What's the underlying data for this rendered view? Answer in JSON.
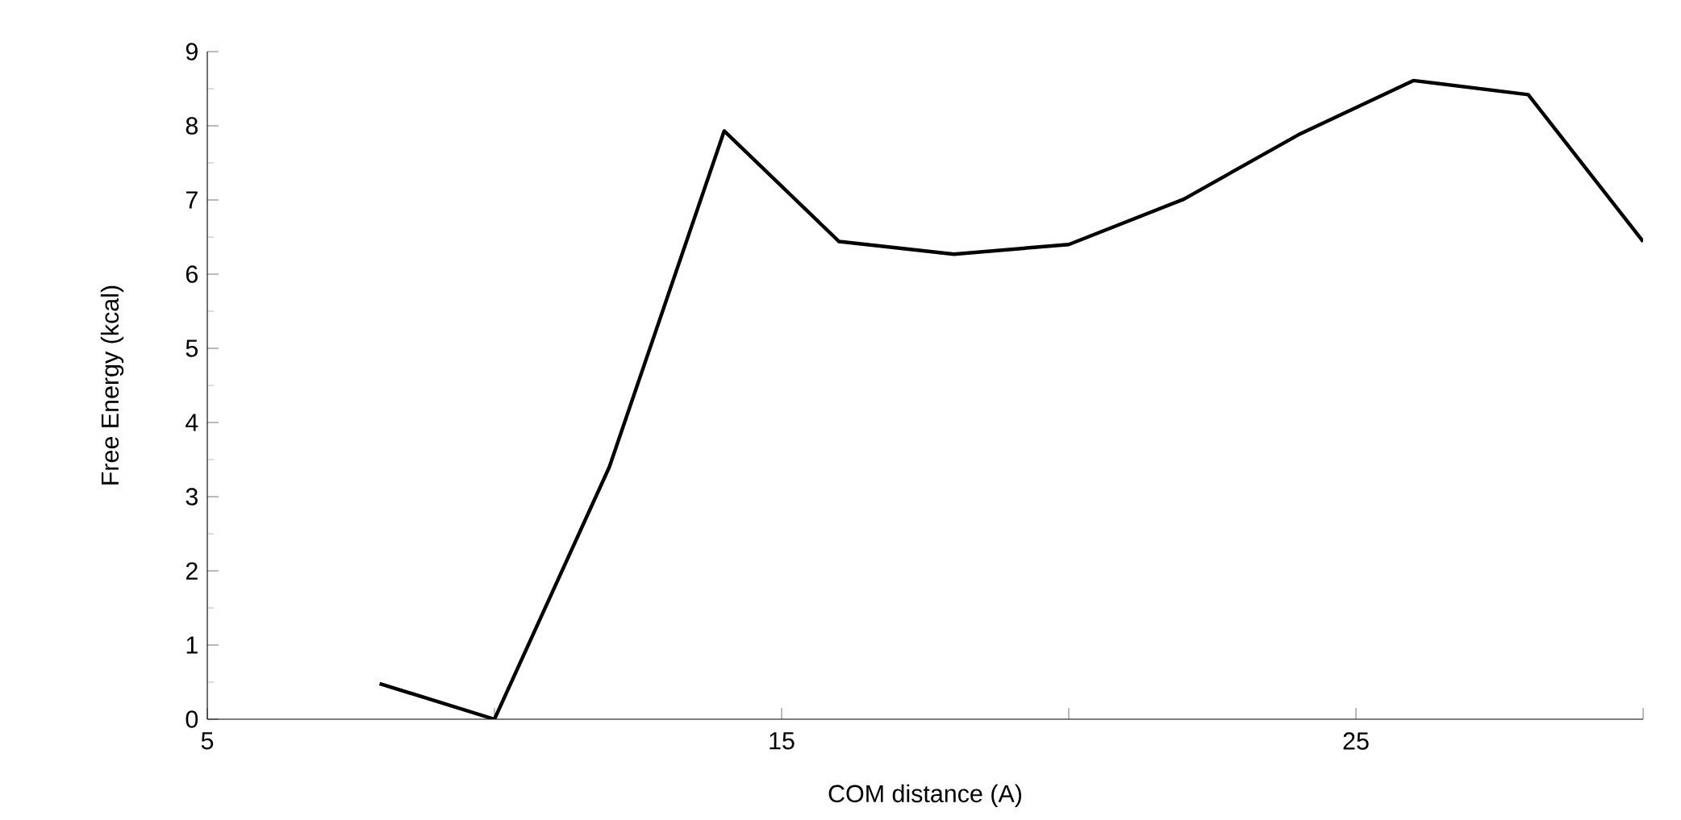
{
  "chart_data": {
    "type": "line",
    "xlabel": "COM distance (A)",
    "ylabel": "Free Energy (kcal)",
    "x": [
      8,
      10,
      12,
      14,
      16,
      18,
      20,
      22,
      24,
      26,
      28,
      30
    ],
    "series": [
      {
        "color": "#000000",
        "values": [
          0.48,
          0,
          3.4,
          7.93,
          6.44,
          6.27,
          6.4,
          7.01,
          7.88,
          8.61,
          8.42,
          6.44
        ]
      }
    ],
    "xlim": [
      5,
      30
    ],
    "xticks": [
      5,
      {
        "value": 10,
        "label": null
      },
      15,
      {
        "value": 20,
        "label": null
      },
      25,
      {
        "value": 30,
        "label": null
      }
    ],
    "ylim": [
      0,
      9
    ],
    "yticks": [
      0,
      1,
      2,
      3,
      4,
      5,
      6,
      7,
      8,
      9
    ],
    "grid": false,
    "marker": "none",
    "line_style": "solid"
  }
}
